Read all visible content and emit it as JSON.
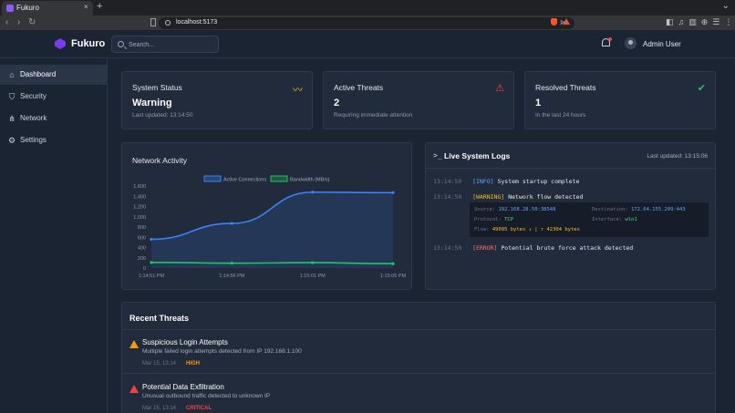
{
  "browser": {
    "tab_title": "Fukuro",
    "tab_close": "×",
    "new_tab": "+",
    "url": "localhost:5173",
    "window_controls": "⌄"
  },
  "header": {
    "logo": "Fukuro",
    "search_placeholder": "Search...",
    "user_name": "Admin User"
  },
  "sidebar": {
    "items": [
      {
        "label": "Dashboard",
        "icon": "home-icon",
        "glyph": "⌂",
        "active": true
      },
      {
        "label": "Security",
        "icon": "shield-icon",
        "glyph": "⛉",
        "active": false
      },
      {
        "label": "Network",
        "icon": "network-icon",
        "glyph": "⋔",
        "active": false
      },
      {
        "label": "Settings",
        "icon": "gear-icon",
        "glyph": "⚙",
        "active": false
      }
    ]
  },
  "cards": {
    "system_status": {
      "title": "System Status",
      "value": "Warning",
      "sub": "Last updated: 13:14:50",
      "icon": "activity-icon",
      "glyph": "〰",
      "color": "#facc15"
    },
    "active_threats": {
      "title": "Active Threats",
      "value": "2",
      "sub": "Requiring immediate attention",
      "icon": "alert-triangle-icon",
      "glyph": "⚠",
      "color": "#ef4444"
    },
    "resolved_threats": {
      "title": "Resolved Threats",
      "value": "1",
      "sub": "In the last 24 hours",
      "icon": "check-circle-icon",
      "glyph": "✔",
      "color": "#22c55e"
    }
  },
  "network": {
    "title": "Network Activity"
  },
  "chart_data": {
    "type": "line",
    "title": "Network Activity",
    "x": [
      "1:14:51 PM",
      "1:14:56 PM",
      "1:15:01 PM",
      "1:15:06 PM"
    ],
    "series": [
      {
        "name": "Active Connections",
        "values": [
          560,
          870,
          1480,
          1470
        ],
        "color": "#3b82f6"
      },
      {
        "name": "Bandwidth (MB/s)",
        "values": [
          110,
          95,
          105,
          85
        ],
        "color": "#22c55e"
      }
    ],
    "ylim": [
      0,
      1600
    ],
    "yticks": [
      "0",
      "200",
      "400",
      "600",
      "800",
      "1,000",
      "1,200",
      "1,400",
      "1,600"
    ],
    "legend": "top-center",
    "grid": false
  },
  "logs": {
    "prompt": ">_",
    "title": "Live System Logs",
    "updated": "Last updated: 13:15:06",
    "lines": [
      {
        "ts": "13:14:50",
        "level": "[INFO]",
        "msg": "System startup complete"
      },
      {
        "ts": "13:14:50",
        "level": "[WARNING]",
        "msg": "Network flow detected"
      },
      {
        "ts": "13:14:50",
        "level": "[ERROR]",
        "msg": "Potential brute force attack detected"
      }
    ],
    "detail": {
      "source_k": "Source:",
      "source_v": "192.168.28.50:38548",
      "dest_k": "Destination:",
      "dest_v": "172.64.155.209:443",
      "proto_k": "Protocol:",
      "proto_v": "TCP",
      "iface_k": "Interface:",
      "iface_v": "wlo1",
      "flow_k": "Flow:",
      "flow_v": "49095 bytes ↓ | ↑ 42304 bytes"
    }
  },
  "threats": {
    "title": "Recent Threats",
    "items": [
      {
        "name": "Suspicious Login Attempts",
        "desc": "Multiple failed login attempts detected from IP 192.168.1.100",
        "date": "Mar 15, 13:14",
        "severity": "HIGH"
      },
      {
        "name": "Potential Data Exfiltration",
        "desc": "Unusual outbound traffic detected to unknown IP",
        "date": "Mar 15, 13:14",
        "severity": "CRITICAL"
      }
    ]
  }
}
